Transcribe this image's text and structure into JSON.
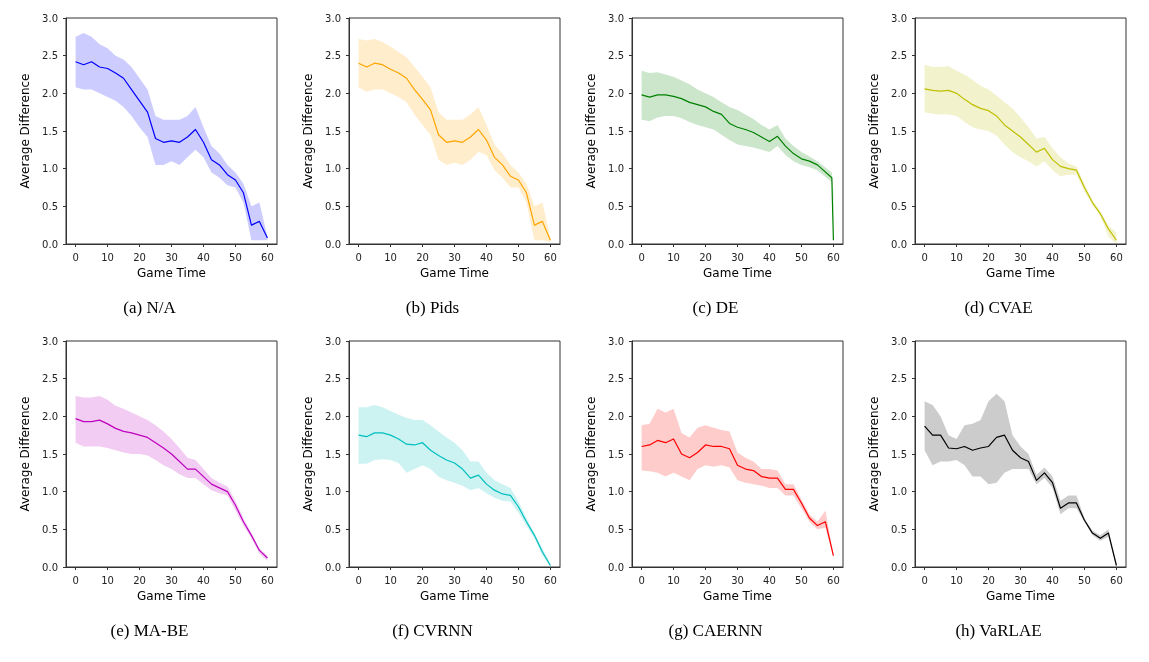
{
  "chart_data": [
    {
      "type": "line",
      "title": "(a) N/A",
      "xlabel": "Game Time",
      "ylabel": "Average Difference",
      "xlim": [
        -3,
        63
      ],
      "ylim": [
        0,
        3
      ],
      "xticks": [
        0,
        10,
        20,
        30,
        40,
        50,
        60
      ],
      "yticks": [
        {
          "value": 0,
          "label": "0.0"
        },
        0.5,
        {
          "value": 1,
          "label": "1.0"
        },
        1.5,
        {
          "value": 2,
          "label": "2.0"
        },
        2.5,
        {
          "value": 3,
          "label": "3.0"
        }
      ],
      "grid": false,
      "marker": "none",
      "x": [
        0,
        2.5,
        5,
        7.5,
        10,
        12.5,
        15,
        17.5,
        20,
        22.5,
        25,
        27.5,
        30,
        32.5,
        35,
        37.5,
        40,
        42.5,
        45,
        47.5,
        50,
        52.5,
        55,
        57.5,
        60
      ],
      "series": [
        {
          "color": "#0000ff",
          "values": [
            2.42,
            2.38,
            2.42,
            2.35,
            2.33,
            2.27,
            2.2,
            2.05,
            1.9,
            1.75,
            1.4,
            1.35,
            1.37,
            1.35,
            1.42,
            1.52,
            1.35,
            1.12,
            1.05,
            0.92,
            0.85,
            0.68,
            0.25,
            0.3,
            0.08
          ],
          "upper": [
            2.75,
            2.8,
            2.75,
            2.65,
            2.6,
            2.5,
            2.45,
            2.35,
            2.2,
            2.05,
            1.7,
            1.65,
            1.65,
            1.65,
            1.7,
            1.82,
            1.55,
            1.3,
            1.2,
            1.05,
            0.95,
            0.8,
            0.5,
            0.55,
            0.1
          ],
          "lower": [
            2.08,
            2.05,
            2.05,
            2.0,
            1.95,
            1.9,
            1.82,
            1.7,
            1.55,
            1.42,
            1.05,
            1.05,
            1.1,
            1.05,
            1.15,
            1.25,
            1.15,
            0.95,
            0.88,
            0.78,
            0.75,
            0.55,
            0.05,
            0.05,
            0.05
          ]
        }
      ]
    },
    {
      "type": "line",
      "title": "(b) Pids",
      "xlabel": "Game Time",
      "ylabel": "Average Difference",
      "xlim": [
        -3,
        63
      ],
      "ylim": [
        0,
        3
      ],
      "xticks": [
        0,
        10,
        20,
        30,
        40,
        50,
        60
      ],
      "yticks": [
        {
          "value": 0,
          "label": "0.0"
        },
        0.5,
        {
          "value": 1,
          "label": "1.0"
        },
        1.5,
        {
          "value": 2,
          "label": "2.0"
        },
        2.5,
        {
          "value": 3,
          "label": "3.0"
        }
      ],
      "grid": false,
      "marker": "none",
      "x": [
        0,
        2.5,
        5,
        7.5,
        10,
        12.5,
        15,
        17.5,
        20,
        22.5,
        25,
        27.5,
        30,
        32.5,
        35,
        37.5,
        40,
        42.5,
        45,
        47.5,
        50,
        52.5,
        55,
        57.5,
        60
      ],
      "series": [
        {
          "color": "#ffa500",
          "values": [
            2.4,
            2.35,
            2.4,
            2.38,
            2.32,
            2.27,
            2.2,
            2.05,
            1.92,
            1.78,
            1.45,
            1.35,
            1.37,
            1.35,
            1.42,
            1.52,
            1.38,
            1.15,
            1.05,
            0.9,
            0.85,
            0.68,
            0.25,
            0.3,
            0.05
          ],
          "upper": [
            2.72,
            2.7,
            2.72,
            2.68,
            2.62,
            2.55,
            2.48,
            2.35,
            2.22,
            2.08,
            1.75,
            1.65,
            1.65,
            1.65,
            1.72,
            1.82,
            1.58,
            1.32,
            1.2,
            1.05,
            0.95,
            0.8,
            0.5,
            0.55,
            0.08
          ],
          "lower": [
            2.08,
            2.02,
            2.05,
            2.05,
            2.0,
            1.95,
            1.88,
            1.72,
            1.58,
            1.45,
            1.12,
            1.05,
            1.08,
            1.05,
            1.12,
            1.22,
            1.18,
            0.98,
            0.88,
            0.75,
            0.75,
            0.55,
            0.05,
            0.05,
            0.03
          ]
        }
      ]
    },
    {
      "type": "line",
      "title": "(c) DE",
      "xlabel": "Game Time",
      "ylabel": "Average Difference",
      "xlim": [
        -3,
        63
      ],
      "ylim": [
        0,
        3
      ],
      "xticks": [
        0,
        10,
        20,
        30,
        40,
        50,
        60
      ],
      "yticks": [
        {
          "value": 0,
          "label": "0.0"
        },
        0.5,
        {
          "value": 1,
          "label": "1.0"
        },
        1.5,
        {
          "value": 2,
          "label": "2.0"
        },
        2.5,
        {
          "value": 3,
          "label": "3.0"
        }
      ],
      "grid": false,
      "marker": "none",
      "x": [
        0,
        2.5,
        5,
        7.5,
        10,
        12.5,
        15,
        17.5,
        20,
        22.5,
        25,
        27.5,
        30,
        32.5,
        35,
        37.5,
        40,
        42.5,
        45,
        47.5,
        50,
        52.5,
        55,
        59.5,
        60
      ],
      "series": [
        {
          "color": "#008000",
          "values": [
            1.98,
            1.95,
            1.98,
            1.98,
            1.96,
            1.93,
            1.88,
            1.85,
            1.82,
            1.76,
            1.72,
            1.6,
            1.55,
            1.52,
            1.48,
            1.42,
            1.36,
            1.43,
            1.3,
            1.2,
            1.13,
            1.1,
            1.05,
            0.88,
            0.05
          ],
          "upper": [
            2.3,
            2.27,
            2.28,
            2.25,
            2.22,
            2.17,
            2.12,
            2.05,
            2.0,
            1.95,
            1.88,
            1.82,
            1.78,
            1.72,
            1.66,
            1.58,
            1.52,
            1.58,
            1.4,
            1.3,
            1.22,
            1.16,
            1.1,
            0.95,
            0.7
          ],
          "lower": [
            1.65,
            1.63,
            1.68,
            1.7,
            1.7,
            1.67,
            1.62,
            1.58,
            1.55,
            1.52,
            1.45,
            1.38,
            1.32,
            1.3,
            1.28,
            1.25,
            1.22,
            1.3,
            1.18,
            1.1,
            1.05,
            1.02,
            0.98,
            0.82,
            0.05
          ]
        }
      ]
    },
    {
      "type": "line",
      "title": "(d) CVAE",
      "xlabel": "Game Time",
      "ylabel": "Average Difference",
      "xlim": [
        -3,
        63
      ],
      "ylim": [
        0,
        3
      ],
      "xticks": [
        0,
        10,
        20,
        30,
        40,
        50,
        60
      ],
      "yticks": [
        {
          "value": 0,
          "label": "0.0"
        },
        0.5,
        {
          "value": 1,
          "label": "1.0"
        },
        1.5,
        {
          "value": 2,
          "label": "2.0"
        },
        2.5,
        {
          "value": 3,
          "label": "3.0"
        }
      ],
      "grid": false,
      "marker": "none",
      "x": [
        0,
        2.5,
        5,
        7.5,
        10,
        12.5,
        15,
        17.5,
        20,
        22.5,
        25,
        27.5,
        30,
        32.5,
        35,
        37.5,
        40,
        42.5,
        45,
        47.5,
        50,
        52.5,
        55,
        57.5,
        60
      ],
      "series": [
        {
          "color": "#bfbf00",
          "values": [
            2.06,
            2.04,
            2.03,
            2.04,
            2.0,
            1.92,
            1.85,
            1.8,
            1.77,
            1.7,
            1.58,
            1.5,
            1.42,
            1.32,
            1.22,
            1.27,
            1.12,
            1.03,
            1.0,
            0.98,
            0.75,
            0.55,
            0.4,
            0.2,
            0.05
          ],
          "upper": [
            2.38,
            2.35,
            2.35,
            2.36,
            2.3,
            2.25,
            2.18,
            2.1,
            2.05,
            1.97,
            1.88,
            1.8,
            1.68,
            1.55,
            1.4,
            1.42,
            1.27,
            1.15,
            1.07,
            1.03,
            0.8,
            0.58,
            0.43,
            0.25,
            0.15
          ],
          "lower": [
            1.75,
            1.73,
            1.72,
            1.72,
            1.7,
            1.62,
            1.55,
            1.52,
            1.5,
            1.44,
            1.32,
            1.22,
            1.15,
            1.1,
            1.03,
            1.1,
            0.98,
            0.9,
            0.92,
            0.92,
            0.7,
            0.52,
            0.37,
            0.1,
            0.0
          ]
        }
      ]
    },
    {
      "type": "line",
      "title": "(e) MA-BE",
      "xlabel": "Game Time",
      "ylabel": "Average Difference",
      "xlim": [
        -3,
        63
      ],
      "ylim": [
        0,
        3
      ],
      "xticks": [
        0,
        10,
        20,
        30,
        40,
        50,
        60
      ],
      "yticks": [
        {
          "value": 0,
          "label": "0.0"
        },
        0.5,
        {
          "value": 1,
          "label": "1.0"
        },
        1.5,
        {
          "value": 2,
          "label": "2.0"
        },
        2.5,
        {
          "value": 3,
          "label": "3.0"
        }
      ],
      "grid": false,
      "marker": "none",
      "x": [
        0,
        2.5,
        5,
        7.5,
        10,
        12.5,
        15,
        17.5,
        20,
        22.5,
        25,
        27.5,
        30,
        32.5,
        35,
        37.5,
        40,
        42.5,
        45,
        47.5,
        50,
        52.5,
        55,
        57.5,
        60
      ],
      "series": [
        {
          "color": "#bf00bf",
          "values": [
            1.97,
            1.93,
            1.93,
            1.95,
            1.9,
            1.84,
            1.8,
            1.78,
            1.75,
            1.72,
            1.65,
            1.58,
            1.5,
            1.4,
            1.3,
            1.3,
            1.2,
            1.1,
            1.05,
            1.0,
            0.82,
            0.6,
            0.42,
            0.22,
            0.12
          ],
          "upper": [
            2.27,
            2.25,
            2.25,
            2.27,
            2.22,
            2.14,
            2.1,
            2.05,
            2.0,
            1.95,
            1.88,
            1.8,
            1.7,
            1.58,
            1.45,
            1.42,
            1.3,
            1.18,
            1.12,
            1.07,
            0.88,
            0.65,
            0.45,
            0.25,
            0.15
          ],
          "lower": [
            1.65,
            1.6,
            1.6,
            1.6,
            1.58,
            1.55,
            1.52,
            1.5,
            1.5,
            1.48,
            1.42,
            1.35,
            1.3,
            1.23,
            1.18,
            1.18,
            1.1,
            1.02,
            0.98,
            0.95,
            0.75,
            0.55,
            0.38,
            0.18,
            0.08
          ]
        }
      ]
    },
    {
      "type": "line",
      "title": "(f) CVRNN",
      "xlabel": "Game Time",
      "ylabel": "Average Difference",
      "xlim": [
        -3,
        63
      ],
      "ylim": [
        0,
        3
      ],
      "xticks": [
        0,
        10,
        20,
        30,
        40,
        50,
        60
      ],
      "yticks": [
        {
          "value": 0,
          "label": "0.0"
        },
        0.5,
        {
          "value": 1,
          "label": "1.0"
        },
        1.5,
        {
          "value": 2,
          "label": "2.0"
        },
        2.5,
        {
          "value": 3,
          "label": "3.0"
        }
      ],
      "grid": false,
      "marker": "none",
      "x": [
        0,
        2.5,
        5,
        7.5,
        10,
        12.5,
        15,
        17.5,
        20,
        22.5,
        25,
        27.5,
        30,
        32.5,
        35,
        37.5,
        40,
        42.5,
        45,
        47.5,
        50,
        52.5,
        55,
        57.5,
        60
      ],
      "series": [
        {
          "color": "#00bfbf",
          "values": [
            1.75,
            1.73,
            1.78,
            1.78,
            1.75,
            1.7,
            1.63,
            1.62,
            1.65,
            1.55,
            1.48,
            1.42,
            1.38,
            1.3,
            1.18,
            1.22,
            1.1,
            1.02,
            0.97,
            0.95,
            0.8,
            0.6,
            0.42,
            0.2,
            0.02
          ],
          "upper": [
            2.12,
            2.12,
            2.15,
            2.12,
            2.07,
            2.02,
            1.98,
            1.95,
            1.95,
            1.88,
            1.8,
            1.72,
            1.65,
            1.55,
            1.4,
            1.4,
            1.25,
            1.15,
            1.1,
            1.05,
            0.87,
            0.65,
            0.45,
            0.25,
            0.05
          ],
          "lower": [
            1.37,
            1.37,
            1.42,
            1.43,
            1.42,
            1.38,
            1.25,
            1.3,
            1.35,
            1.3,
            1.2,
            1.15,
            1.12,
            1.08,
            1.02,
            1.05,
            0.98,
            0.92,
            0.88,
            0.87,
            0.72,
            0.55,
            0.38,
            0.15,
            0.0
          ]
        }
      ]
    },
    {
      "type": "line",
      "title": "(g) CAERNN",
      "xlabel": "Game Time",
      "ylabel": "Average Difference",
      "xlim": [
        -3,
        63
      ],
      "ylim": [
        0,
        3
      ],
      "xticks": [
        0,
        10,
        20,
        30,
        40,
        50,
        60
      ],
      "yticks": [
        {
          "value": 0,
          "label": "0.0"
        },
        0.5,
        {
          "value": 1,
          "label": "1.0"
        },
        1.5,
        {
          "value": 2,
          "label": "2.0"
        },
        2.5,
        {
          "value": 3,
          "label": "3.0"
        }
      ],
      "grid": false,
      "marker": "none",
      "x": [
        0,
        2.5,
        5,
        7.5,
        10,
        12.5,
        15,
        17.5,
        20,
        22.5,
        25,
        27.5,
        30,
        32.5,
        35,
        37.5,
        40,
        42.5,
        45,
        47.5,
        50,
        52.5,
        55,
        57.5,
        60
      ],
      "series": [
        {
          "color": "#ff0000",
          "values": [
            1.6,
            1.62,
            1.68,
            1.65,
            1.7,
            1.5,
            1.45,
            1.52,
            1.62,
            1.6,
            1.6,
            1.57,
            1.35,
            1.3,
            1.28,
            1.2,
            1.18,
            1.18,
            1.03,
            1.03,
            0.85,
            0.65,
            0.55,
            0.6,
            0.15
          ],
          "upper": [
            1.88,
            1.9,
            2.1,
            2.05,
            2.1,
            1.78,
            1.72,
            1.85,
            1.88,
            1.85,
            1.82,
            1.8,
            1.52,
            1.45,
            1.4,
            1.3,
            1.3,
            1.28,
            1.1,
            1.1,
            0.9,
            0.7,
            0.6,
            0.75,
            0.17
          ],
          "lower": [
            1.28,
            1.27,
            1.25,
            1.2,
            1.25,
            1.2,
            1.15,
            1.3,
            1.35,
            1.33,
            1.35,
            1.32,
            1.15,
            1.12,
            1.1,
            1.08,
            1.05,
            1.05,
            0.95,
            0.95,
            0.78,
            0.6,
            0.5,
            0.52,
            0.13
          ]
        }
      ]
    },
    {
      "type": "line",
      "title": "(h) VaRLAE",
      "xlabel": "Game Time",
      "ylabel": "Average Difference",
      "xlim": [
        -3,
        63
      ],
      "ylim": [
        0,
        3
      ],
      "xticks": [
        0,
        10,
        20,
        30,
        40,
        50,
        60
      ],
      "yticks": [
        {
          "value": 0,
          "label": "0.0"
        },
        0.5,
        {
          "value": 1,
          "label": "1.0"
        },
        1.5,
        {
          "value": 2,
          "label": "2.0"
        },
        2.5,
        {
          "value": 3,
          "label": "3.0"
        }
      ],
      "grid": false,
      "marker": "none",
      "x": [
        0,
        2.5,
        5,
        7.5,
        10,
        12.5,
        15,
        17.5,
        20,
        22.5,
        25,
        27.5,
        30,
        32.5,
        35,
        37.5,
        40,
        42.5,
        45,
        47.5,
        50,
        52.5,
        55,
        57.5,
        60
      ],
      "series": [
        {
          "color": "#000000",
          "values": [
            1.87,
            1.75,
            1.75,
            1.58,
            1.57,
            1.6,
            1.55,
            1.58,
            1.6,
            1.72,
            1.75,
            1.55,
            1.45,
            1.4,
            1.15,
            1.25,
            1.12,
            0.78,
            0.85,
            0.85,
            0.62,
            0.45,
            0.38,
            0.45,
            0.02
          ],
          "upper": [
            2.2,
            2.15,
            2.0,
            1.75,
            1.7,
            1.88,
            1.9,
            1.95,
            2.2,
            2.3,
            2.2,
            1.75,
            1.6,
            1.5,
            1.22,
            1.32,
            1.2,
            0.88,
            0.95,
            0.95,
            0.65,
            0.48,
            0.42,
            0.5,
            0.05
          ],
          "lower": [
            1.55,
            1.35,
            1.4,
            1.4,
            1.42,
            1.35,
            1.2,
            1.2,
            1.1,
            1.12,
            1.25,
            1.3,
            1.3,
            1.3,
            1.1,
            1.18,
            1.05,
            0.7,
            0.78,
            0.78,
            0.6,
            0.42,
            0.35,
            0.4,
            0.0
          ]
        }
      ]
    }
  ]
}
